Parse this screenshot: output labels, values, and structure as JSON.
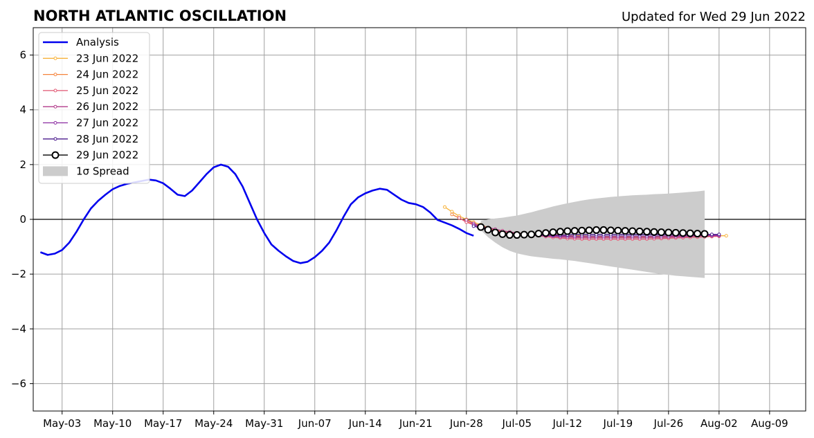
{
  "chart_data": {
    "type": "line",
    "title": "NORTH ATLANTIC OSCILLATION",
    "subtitle": "Updated for Wed 29 Jun 2022",
    "xlabel": "",
    "ylabel": "",
    "xlim": [
      "2022-04-29",
      "2022-08-14"
    ],
    "ylim": [
      -7,
      7
    ],
    "x_ticks": [
      "May-03",
      "May-10",
      "May-17",
      "May-24",
      "May-31",
      "Jun-07",
      "Jun-14",
      "Jun-21",
      "Jun-28",
      "Jul-05",
      "Jul-12",
      "Jul-19",
      "Jul-26",
      "Aug-02",
      "Aug-09"
    ],
    "y_ticks": [
      "6",
      "4",
      "2",
      "0",
      "−2",
      "−4",
      "−6"
    ],
    "grid": true,
    "legend_position": "upper-left",
    "analysis": {
      "name": "Analysis",
      "color": "#0000ee",
      "x": [
        "2022-04-30",
        "2022-05-01",
        "2022-05-02",
        "2022-05-03",
        "2022-05-04",
        "2022-05-05",
        "2022-05-06",
        "2022-05-07",
        "2022-05-08",
        "2022-05-09",
        "2022-05-10",
        "2022-05-11",
        "2022-05-12",
        "2022-05-13",
        "2022-05-14",
        "2022-05-15",
        "2022-05-16",
        "2022-05-17",
        "2022-05-18",
        "2022-05-19",
        "2022-05-20",
        "2022-05-21",
        "2022-05-22",
        "2022-05-23",
        "2022-05-24",
        "2022-05-25",
        "2022-05-26",
        "2022-05-27",
        "2022-05-28",
        "2022-05-29",
        "2022-05-30",
        "2022-05-31",
        "2022-06-01",
        "2022-06-02",
        "2022-06-03",
        "2022-06-04",
        "2022-06-05",
        "2022-06-06",
        "2022-06-07",
        "2022-06-08",
        "2022-06-09",
        "2022-06-10",
        "2022-06-11",
        "2022-06-12",
        "2022-06-13",
        "2022-06-14",
        "2022-06-15",
        "2022-06-16",
        "2022-06-17",
        "2022-06-18",
        "2022-06-19",
        "2022-06-20",
        "2022-06-21",
        "2022-06-22",
        "2022-06-23",
        "2022-06-24",
        "2022-06-25",
        "2022-06-26",
        "2022-06-27",
        "2022-06-28",
        "2022-06-29"
      ],
      "y": [
        -1.2,
        -1.3,
        -1.25,
        -1.12,
        -0.85,
        -0.45,
        0.0,
        0.4,
        0.68,
        0.9,
        1.1,
        1.22,
        1.3,
        1.35,
        1.4,
        1.45,
        1.42,
        1.32,
        1.12,
        0.9,
        0.85,
        1.05,
        1.35,
        1.65,
        1.9,
        2.0,
        1.92,
        1.65,
        1.2,
        0.6,
        0.0,
        -0.5,
        -0.92,
        -1.15,
        -1.35,
        -1.52,
        -1.6,
        -1.55,
        -1.38,
        -1.15,
        -0.85,
        -0.4,
        0.1,
        0.55,
        0.8,
        0.95,
        1.05,
        1.12,
        1.08,
        0.9,
        0.72,
        0.6,
        0.55,
        0.45,
        0.25,
        -0.02,
        -0.12,
        -0.22,
        -0.35,
        -0.5,
        -0.6
      ]
    },
    "forecasts": [
      {
        "name": "23 Jun 2022",
        "color": "#f7b23a",
        "start": "2022-06-25",
        "y": [
          0.45,
          0.28,
          0.12,
          0.0,
          -0.1,
          -0.2,
          -0.3,
          -0.38,
          -0.44,
          -0.48,
          -0.5,
          -0.52,
          -0.54,
          -0.55,
          -0.55,
          -0.55,
          -0.56,
          -0.57,
          -0.58,
          -0.6,
          -0.62,
          -0.63,
          -0.64,
          -0.64,
          -0.64,
          -0.64,
          -0.64,
          -0.64,
          -0.64,
          -0.64,
          -0.64,
          -0.64,
          -0.63,
          -0.62,
          -0.62,
          -0.61,
          -0.6,
          -0.6,
          -0.6,
          -0.6
        ]
      },
      {
        "name": "24 Jun 2022",
        "color": "#f5823a",
        "start": "2022-06-26",
        "y": [
          0.18,
          0.05,
          -0.08,
          -0.18,
          -0.26,
          -0.32,
          -0.38,
          -0.42,
          -0.46,
          -0.5,
          -0.52,
          -0.54,
          -0.55,
          -0.56,
          -0.58,
          -0.6,
          -0.62,
          -0.64,
          -0.65,
          -0.66,
          -0.66,
          -0.66,
          -0.66,
          -0.66,
          -0.66,
          -0.67,
          -0.67,
          -0.66,
          -0.66,
          -0.65,
          -0.64,
          -0.63,
          -0.62,
          -0.61,
          -0.6,
          -0.6,
          -0.6,
          -0.6
        ]
      },
      {
        "name": "25 Jun 2022",
        "color": "#e05470",
        "start": "2022-06-27",
        "y": [
          0.05,
          -0.1,
          -0.2,
          -0.28,
          -0.35,
          -0.42,
          -0.47,
          -0.5,
          -0.53,
          -0.55,
          -0.57,
          -0.6,
          -0.63,
          -0.66,
          -0.68,
          -0.7,
          -0.71,
          -0.72,
          -0.72,
          -0.72,
          -0.72,
          -0.72,
          -0.72,
          -0.72,
          -0.72,
          -0.72,
          -0.72,
          -0.71,
          -0.7,
          -0.69,
          -0.68,
          -0.67,
          -0.66,
          -0.65,
          -0.64,
          -0.63,
          -0.62
        ]
      },
      {
        "name": "26 Jun 2022",
        "color": "#b23a8a",
        "start": "2022-06-28",
        "y": [
          -0.02,
          -0.15,
          -0.24,
          -0.3,
          -0.36,
          -0.42,
          -0.46,
          -0.5,
          -0.53,
          -0.56,
          -0.58,
          -0.6,
          -0.62,
          -0.64,
          -0.65,
          -0.66,
          -0.67,
          -0.67,
          -0.67,
          -0.67,
          -0.67,
          -0.67,
          -0.67,
          -0.67,
          -0.67,
          -0.67,
          -0.66,
          -0.66,
          -0.65,
          -0.64,
          -0.63,
          -0.62,
          -0.61,
          -0.6,
          -0.6,
          -0.6
        ]
      },
      {
        "name": "27 Jun 2022",
        "color": "#8a2aa0",
        "start": "2022-06-29",
        "y": [
          -0.2,
          -0.3,
          -0.38,
          -0.44,
          -0.48,
          -0.52,
          -0.55,
          -0.57,
          -0.58,
          -0.59,
          -0.6,
          -0.6,
          -0.61,
          -0.61,
          -0.62,
          -0.62,
          -0.62,
          -0.62,
          -0.62,
          -0.62,
          -0.62,
          -0.62,
          -0.62,
          -0.62,
          -0.62,
          -0.62,
          -0.61,
          -0.61,
          -0.6,
          -0.6,
          -0.6,
          -0.59,
          -0.58,
          -0.58,
          -0.58
        ]
      },
      {
        "name": "28 Jun 2022",
        "color": "#4a1a8c",
        "start": "2022-06-29",
        "y": [
          -0.25,
          -0.32,
          -0.4,
          -0.46,
          -0.5,
          -0.53,
          -0.55,
          -0.56,
          -0.57,
          -0.57,
          -0.57,
          -0.57,
          -0.57,
          -0.57,
          -0.56,
          -0.56,
          -0.56,
          -0.56,
          -0.56,
          -0.56,
          -0.56,
          -0.56,
          -0.56,
          -0.56,
          -0.56,
          -0.56,
          -0.56,
          -0.56,
          -0.55,
          -0.55,
          -0.55,
          -0.55,
          -0.55,
          -0.55,
          -0.55
        ]
      }
    ],
    "current": {
      "name": "29 Jun 2022",
      "color": "#000000",
      "start": "2022-06-30",
      "y": [
        -0.28,
        -0.38,
        -0.48,
        -0.54,
        -0.57,
        -0.57,
        -0.56,
        -0.55,
        -0.52,
        -0.5,
        -0.47,
        -0.45,
        -0.43,
        -0.42,
        -0.41,
        -0.4,
        -0.39,
        -0.39,
        -0.4,
        -0.41,
        -0.42,
        -0.43,
        -0.44,
        -0.45,
        -0.46,
        -0.47,
        -0.48,
        -0.49,
        -0.5,
        -0.51,
        -0.52,
        -0.53
      ]
    },
    "spread": {
      "name": "1σ Spread",
      "color": "#cccccc",
      "start": "2022-06-30",
      "upper": [
        -0.05,
        0.0,
        0.03,
        0.06,
        0.1,
        0.14,
        0.2,
        0.26,
        0.33,
        0.4,
        0.47,
        0.53,
        0.59,
        0.64,
        0.69,
        0.73,
        0.76,
        0.79,
        0.82,
        0.84,
        0.86,
        0.88,
        0.89,
        0.9,
        0.92,
        0.93,
        0.94,
        0.96,
        0.98,
        1.0,
        1.02,
        1.05
      ],
      "lower": [
        -0.4,
        -0.65,
        -0.85,
        -1.02,
        -1.15,
        -1.24,
        -1.3,
        -1.35,
        -1.38,
        -1.41,
        -1.44,
        -1.46,
        -1.49,
        -1.52,
        -1.56,
        -1.6,
        -1.64,
        -1.68,
        -1.72,
        -1.76,
        -1.8,
        -1.84,
        -1.88,
        -1.92,
        -1.96,
        -2.0,
        -2.03,
        -2.06,
        -2.08,
        -2.1,
        -2.12,
        -2.14
      ]
    }
  }
}
